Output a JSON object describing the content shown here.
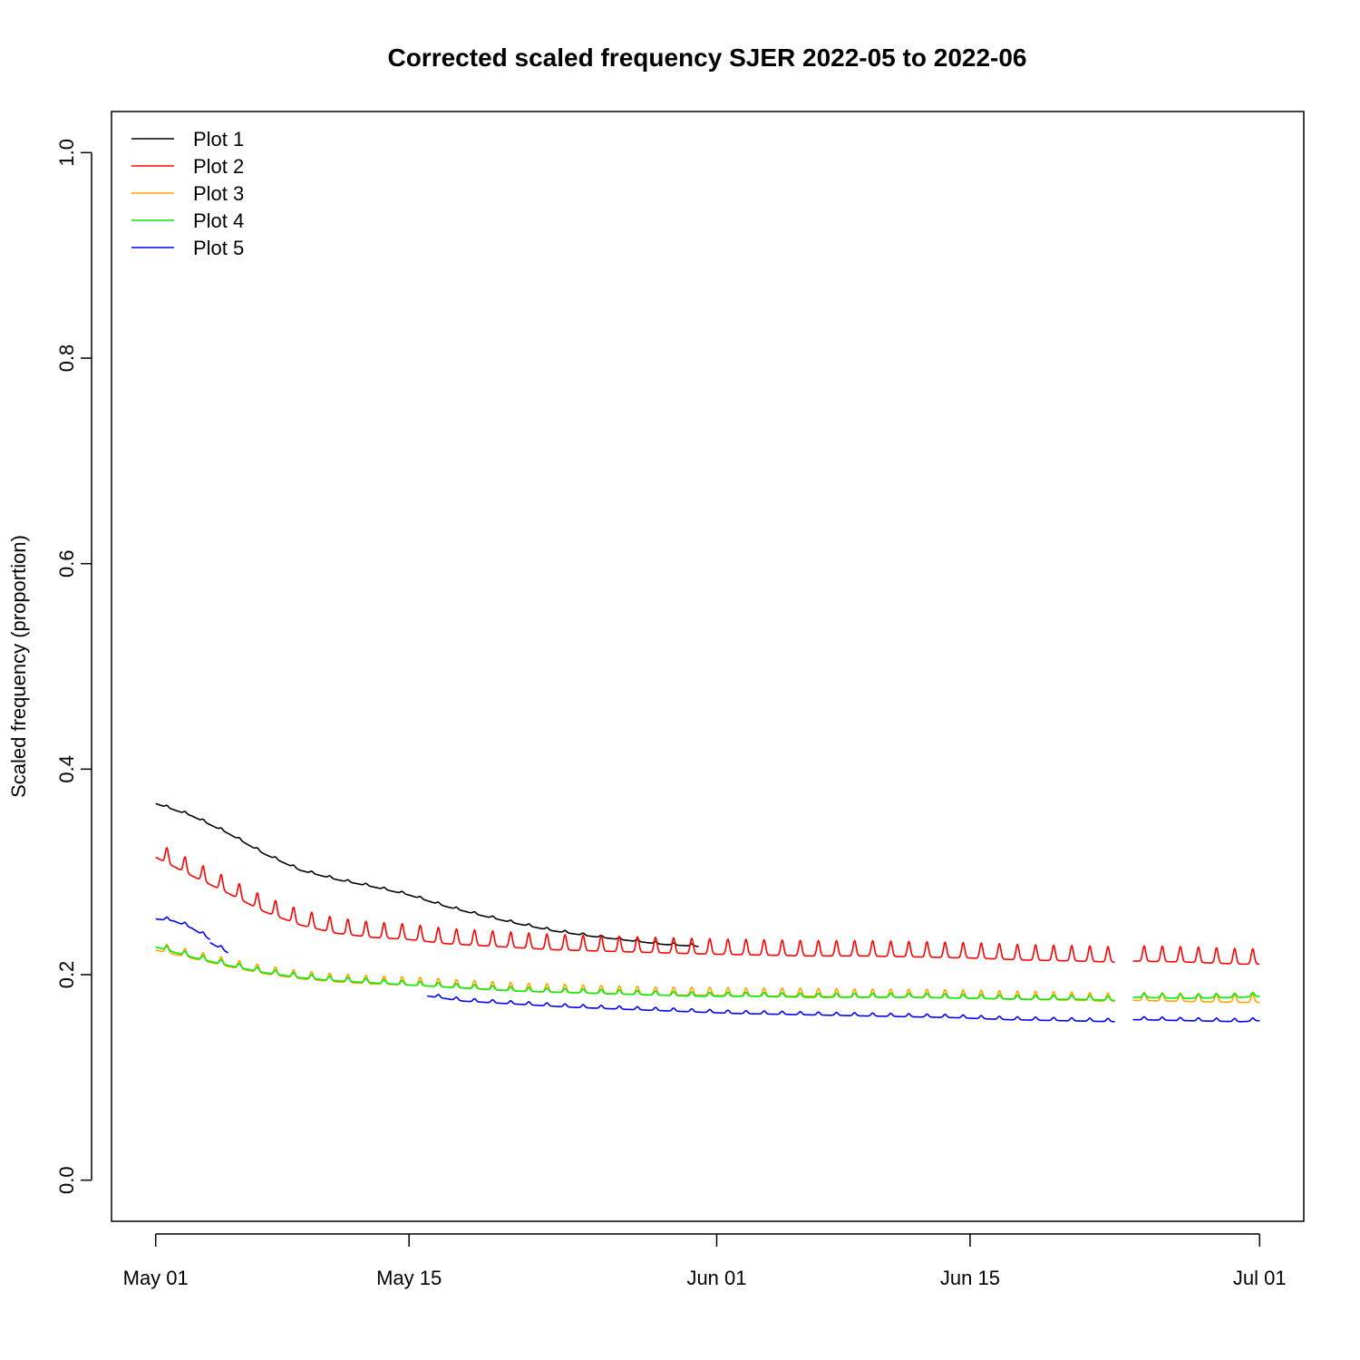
{
  "chart_data": {
    "type": "line",
    "title": "Corrected scaled frequency SJER 2022-05 to 2022-06",
    "xlabel": "",
    "ylabel": "Scaled frequency (proportion)",
    "x_type": "date",
    "xlim": [
      "2022-05-01",
      "2022-07-01"
    ],
    "ylim": [
      0.0,
      1.0
    ],
    "x_ticks": [
      {
        "date": "2022-05-01",
        "label": "May 01"
      },
      {
        "date": "2022-05-15",
        "label": "May 15"
      },
      {
        "date": "2022-06-01",
        "label": "Jun 01"
      },
      {
        "date": "2022-06-15",
        "label": "Jun 15"
      },
      {
        "date": "2022-07-01",
        "label": "Jul 01"
      }
    ],
    "y_ticks": [
      {
        "value": 0.0,
        "label": "0.0"
      },
      {
        "value": 0.2,
        "label": "0.2"
      },
      {
        "value": 0.4,
        "label": "0.4"
      },
      {
        "value": 0.6,
        "label": "0.6"
      },
      {
        "value": 0.8,
        "label": "0.8"
      },
      {
        "value": 1.0,
        "label": "1.0"
      }
    ],
    "grid": false,
    "legend_position": "top-left",
    "series": [
      {
        "name": "Plot 1",
        "color": "#000000",
        "daily_amplitude": 0.002,
        "segments": [
          [
            [
              "2022-05-01",
              0.367
            ],
            [
              "2022-05-03",
              0.355
            ],
            [
              "2022-05-05",
              0.338
            ],
            [
              "2022-05-07",
              0.318
            ],
            [
              "2022-05-09",
              0.302
            ],
            [
              "2022-05-11",
              0.293
            ],
            [
              "2022-05-13",
              0.286
            ],
            [
              "2022-05-15",
              0.278
            ],
            [
              "2022-05-17",
              0.267
            ],
            [
              "2022-05-19",
              0.258
            ],
            [
              "2022-05-21",
              0.25
            ],
            [
              "2022-05-23",
              0.243
            ],
            [
              "2022-05-25",
              0.238
            ],
            [
              "2022-05-27",
              0.234
            ],
            [
              "2022-05-29",
              0.23
            ],
            [
              "2022-05-31",
              0.228
            ]
          ]
        ]
      },
      {
        "name": "Plot 2",
        "color": "#ff0000",
        "daily_amplitude": 0.015,
        "segments": [
          [
            [
              "2022-05-01",
              0.318
            ],
            [
              "2022-05-03",
              0.3
            ],
            [
              "2022-05-05",
              0.283
            ],
            [
              "2022-05-07",
              0.265
            ],
            [
              "2022-05-09",
              0.252
            ],
            [
              "2022-05-11",
              0.244
            ],
            [
              "2022-05-13",
              0.24
            ],
            [
              "2022-05-15",
              0.238
            ],
            [
              "2022-05-17",
              0.234
            ],
            [
              "2022-05-19",
              0.232
            ],
            [
              "2022-05-21",
              0.23
            ],
            [
              "2022-05-23",
              0.228
            ],
            [
              "2022-05-25",
              0.227
            ],
            [
              "2022-05-27",
              0.226
            ],
            [
              "2022-05-29",
              0.225
            ],
            [
              "2022-05-31",
              0.224
            ],
            [
              "2022-06-03",
              0.223
            ],
            [
              "2022-06-06",
              0.222
            ],
            [
              "2022-06-09",
              0.222
            ],
            [
              "2022-06-12",
              0.221
            ],
            [
              "2022-06-15",
              0.22
            ],
            [
              "2022-06-18",
              0.218
            ],
            [
              "2022-06-21",
              0.217
            ],
            [
              "2022-06-23",
              0.216
            ]
          ],
          [
            [
              "2022-06-24",
              0.217
            ],
            [
              "2022-06-27",
              0.216
            ],
            [
              "2022-06-30",
              0.214
            ],
            [
              "2022-07-01",
              0.214
            ]
          ]
        ]
      },
      {
        "name": "Plot 3",
        "color": "#ffa500",
        "daily_amplitude": 0.008,
        "segments": [
          [
            [
              "2022-05-01",
              0.226
            ],
            [
              "2022-05-03",
              0.218
            ],
            [
              "2022-05-05",
              0.21
            ],
            [
              "2022-05-07",
              0.203
            ],
            [
              "2022-05-09",
              0.198
            ],
            [
              "2022-05-11",
              0.195
            ],
            [
              "2022-05-13",
              0.193
            ],
            [
              "2022-05-15",
              0.192
            ],
            [
              "2022-05-17",
              0.19
            ],
            [
              "2022-05-19",
              0.188
            ],
            [
              "2022-05-21",
              0.186
            ],
            [
              "2022-05-23",
              0.185
            ],
            [
              "2022-05-25",
              0.184
            ],
            [
              "2022-05-27",
              0.183
            ],
            [
              "2022-05-29",
              0.182
            ],
            [
              "2022-05-31",
              0.182
            ],
            [
              "2022-06-03",
              0.181
            ],
            [
              "2022-06-06",
              0.181
            ],
            [
              "2022-06-09",
              0.18
            ],
            [
              "2022-06-12",
              0.18
            ],
            [
              "2022-06-15",
              0.179
            ],
            [
              "2022-06-18",
              0.178
            ],
            [
              "2022-06-21",
              0.177
            ],
            [
              "2022-06-23",
              0.176
            ]
          ],
          [
            [
              "2022-06-24",
              0.177
            ],
            [
              "2022-06-27",
              0.176
            ],
            [
              "2022-06-30",
              0.175
            ],
            [
              "2022-07-01",
              0.175
            ]
          ]
        ]
      },
      {
        "name": "Plot 4",
        "color": "#00ee00",
        "daily_amplitude": 0.004,
        "segments": [
          [
            [
              "2022-05-01",
              0.228
            ],
            [
              "2022-05-03",
              0.218
            ],
            [
              "2022-05-05",
              0.21
            ],
            [
              "2022-05-07",
              0.203
            ],
            [
              "2022-05-09",
              0.198
            ],
            [
              "2022-05-11",
              0.195
            ],
            [
              "2022-05-13",
              0.193
            ],
            [
              "2022-05-15",
              0.191
            ],
            [
              "2022-05-17",
              0.189
            ],
            [
              "2022-05-19",
              0.187
            ],
            [
              "2022-05-21",
              0.185
            ],
            [
              "2022-05-23",
              0.184
            ],
            [
              "2022-05-25",
              0.183
            ],
            [
              "2022-05-27",
              0.182
            ],
            [
              "2022-05-29",
              0.181
            ],
            [
              "2022-05-31",
              0.18
            ],
            [
              "2022-06-03",
              0.18
            ],
            [
              "2022-06-06",
              0.179
            ],
            [
              "2022-06-09",
              0.179
            ],
            [
              "2022-06-12",
              0.179
            ],
            [
              "2022-06-15",
              0.178
            ],
            [
              "2022-06-18",
              0.177
            ],
            [
              "2022-06-21",
              0.177
            ],
            [
              "2022-06-23",
              0.176
            ]
          ],
          [
            [
              "2022-06-24",
              0.179
            ],
            [
              "2022-06-27",
              0.178
            ],
            [
              "2022-06-30",
              0.179
            ],
            [
              "2022-07-01",
              0.18
            ]
          ]
        ]
      },
      {
        "name": "Plot 5",
        "color": "#0000ff",
        "daily_amplitude": 0.003,
        "segments": [
          [
            [
              "2022-05-01",
              0.255
            ],
            [
              "2022-05-02",
              0.253
            ],
            [
              "2022-05-03",
              0.246
            ],
            [
              "2022-05-04",
              0.235
            ]
          ],
          [
            [
              "2022-05-04",
              0.232
            ],
            [
              "2022-05-05",
              0.222
            ]
          ],
          [
            [
              "2022-05-16",
              0.18
            ],
            [
              "2022-05-18",
              0.175
            ],
            [
              "2022-05-21",
              0.172
            ],
            [
              "2022-05-24",
              0.169
            ],
            [
              "2022-05-27",
              0.167
            ],
            [
              "2022-05-30",
              0.165
            ],
            [
              "2022-06-02",
              0.163
            ],
            [
              "2022-06-05",
              0.162
            ],
            [
              "2022-06-08",
              0.161
            ],
            [
              "2022-06-11",
              0.16
            ],
            [
              "2022-06-14",
              0.159
            ],
            [
              "2022-06-17",
              0.157
            ],
            [
              "2022-06-20",
              0.156
            ],
            [
              "2022-06-23",
              0.155
            ]
          ],
          [
            [
              "2022-06-24",
              0.157
            ],
            [
              "2022-06-27",
              0.156
            ],
            [
              "2022-06-30",
              0.155
            ],
            [
              "2022-07-01",
              0.156
            ]
          ]
        ]
      }
    ]
  }
}
